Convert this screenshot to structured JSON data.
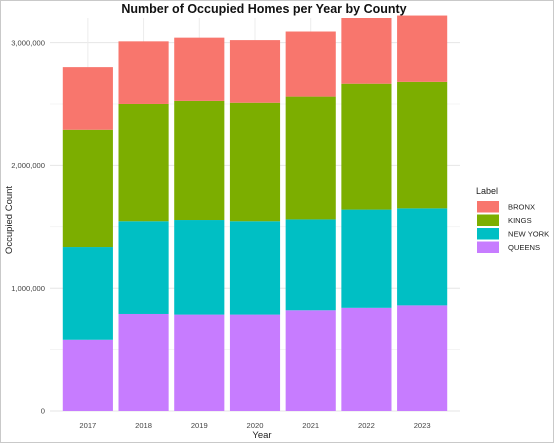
{
  "chart_data": {
    "type": "bar",
    "stacked": true,
    "title": "Number of Occupied Homes per Year by County",
    "xlabel": "Year",
    "ylabel": "Occupied Count",
    "categories": [
      "2017",
      "2018",
      "2019",
      "2020",
      "2021",
      "2022",
      "2023"
    ],
    "ylim": [
      0,
      3200000
    ],
    "yticks": [
      0,
      1000000,
      2000000,
      3000000
    ],
    "ytick_labels": [
      "0",
      "1,000,000",
      "2,000,000",
      "3,000,000"
    ],
    "grid": true,
    "legend": {
      "title": "Label",
      "placement": "right"
    },
    "series": [
      {
        "name": "QUEENS",
        "color": "#C77CFF",
        "values": [
          580000,
          790000,
          785000,
          785000,
          820000,
          840000,
          860000
        ]
      },
      {
        "name": "NEW YORK",
        "color": "#00BFC4",
        "values": [
          755000,
          755000,
          770000,
          760000,
          740000,
          800000,
          790000
        ]
      },
      {
        "name": "KINGS",
        "color": "#7CAE00",
        "values": [
          955000,
          955000,
          970000,
          965000,
          1000000,
          1025000,
          1030000
        ]
      },
      {
        "name": "BRONX",
        "color": "#F8766D",
        "values": [
          510000,
          510000,
          515000,
          510000,
          530000,
          535000,
          540000
        ]
      }
    ],
    "legend_order": [
      "BRONX",
      "KINGS",
      "NEW YORK",
      "QUEENS"
    ]
  }
}
